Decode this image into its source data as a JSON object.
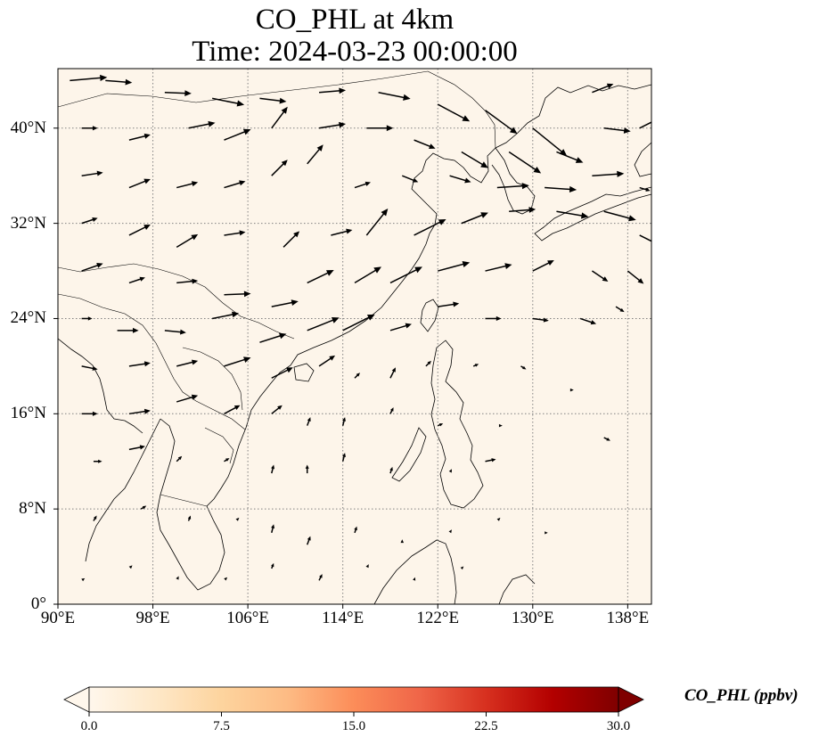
{
  "title": {
    "line1": "CO_PHL at 4km",
    "line2": "Time: 2024-03-23 00:00:00"
  },
  "map": {
    "extent": {
      "lon_min": 90,
      "lon_max": 140,
      "lat_min": 0,
      "lat_max": 45
    },
    "lat_ticks": [
      {
        "value": 40,
        "label": "40°N"
      },
      {
        "value": 32,
        "label": "32°N"
      },
      {
        "value": 24,
        "label": "24°N"
      },
      {
        "value": 16,
        "label": "16°N"
      },
      {
        "value": 8,
        "label": "8°N"
      },
      {
        "value": 0,
        "label": "0°"
      }
    ],
    "lon_ticks": [
      {
        "value": 90,
        "label": "90°E"
      },
      {
        "value": 98,
        "label": "98°E"
      },
      {
        "value": 106,
        "label": "106°E"
      },
      {
        "value": 114,
        "label": "114°E"
      },
      {
        "value": 122,
        "label": "122°E"
      },
      {
        "value": 130,
        "label": "130°E"
      },
      {
        "value": 138,
        "label": "138°E"
      }
    ],
    "gridlines": true,
    "field_color": "#fdf5ea",
    "coast_color": "#000000",
    "vector_color": "#000000",
    "wind_vectors": [
      {
        "lon": 91,
        "lat": 44,
        "u": 3.5,
        "v": 0.3
      },
      {
        "lon": 94,
        "lat": 44,
        "u": 2.5,
        "v": -0.2
      },
      {
        "lon": 99,
        "lat": 43,
        "u": 2.5,
        "v": -0.1
      },
      {
        "lon": 103,
        "lat": 42.5,
        "u": 3,
        "v": -0.6
      },
      {
        "lon": 107,
        "lat": 42.5,
        "u": 2.5,
        "v": -0.3
      },
      {
        "lon": 112,
        "lat": 43,
        "u": 2.5,
        "v": 0.2
      },
      {
        "lon": 117,
        "lat": 43,
        "u": 3,
        "v": -0.6
      },
      {
        "lon": 122,
        "lat": 42,
        "u": 3,
        "v": -1.6
      },
      {
        "lon": 126,
        "lat": 41.5,
        "u": 3,
        "v": -2.2
      },
      {
        "lon": 130,
        "lat": 40,
        "u": 3.2,
        "v": -2.6
      },
      {
        "lon": 135,
        "lat": 43,
        "u": 2,
        "v": 0.8
      },
      {
        "lon": 139,
        "lat": 40,
        "u": 2,
        "v": 1
      },
      {
        "lon": 92,
        "lat": 40,
        "u": 1.5,
        "v": 0
      },
      {
        "lon": 96,
        "lat": 39,
        "u": 2,
        "v": 0.5
      },
      {
        "lon": 101,
        "lat": 40,
        "u": 2.5,
        "v": 0.5
      },
      {
        "lon": 104,
        "lat": 39,
        "u": 2.5,
        "v": 1
      },
      {
        "lon": 108,
        "lat": 40,
        "u": 1.5,
        "v": 2
      },
      {
        "lon": 112,
        "lat": 40,
        "u": 2.5,
        "v": 0.4
      },
      {
        "lon": 116,
        "lat": 40,
        "u": 2.5,
        "v": 0
      },
      {
        "lon": 120,
        "lat": 39,
        "u": 2,
        "v": -0.8
      },
      {
        "lon": 124,
        "lat": 38,
        "u": 2.5,
        "v": -1.5
      },
      {
        "lon": 128,
        "lat": 38,
        "u": 3,
        "v": -2
      },
      {
        "lon": 132,
        "lat": 38,
        "u": 2.5,
        "v": -1
      },
      {
        "lon": 136,
        "lat": 40,
        "u": 2.5,
        "v": -0.3
      },
      {
        "lon": 92,
        "lat": 36,
        "u": 2,
        "v": 0.3
      },
      {
        "lon": 96,
        "lat": 35,
        "u": 2,
        "v": 0.8
      },
      {
        "lon": 100,
        "lat": 35,
        "u": 2,
        "v": 0.5
      },
      {
        "lon": 104,
        "lat": 35,
        "u": 2,
        "v": 0.6
      },
      {
        "lon": 108,
        "lat": 36,
        "u": 1.5,
        "v": 1.5
      },
      {
        "lon": 111,
        "lat": 37,
        "u": 1.5,
        "v": 1.8
      },
      {
        "lon": 115,
        "lat": 35,
        "u": 1.5,
        "v": 0.5
      },
      {
        "lon": 119,
        "lat": 36,
        "u": 1.5,
        "v": -0.6
      },
      {
        "lon": 123,
        "lat": 36,
        "u": 2,
        "v": -0.6
      },
      {
        "lon": 127,
        "lat": 35,
        "u": 3,
        "v": 0.2
      },
      {
        "lon": 131,
        "lat": 35,
        "u": 3,
        "v": -0.2
      },
      {
        "lon": 135,
        "lat": 36,
        "u": 3,
        "v": 0.2
      },
      {
        "lon": 139,
        "lat": 35,
        "u": 1,
        "v": -0.3
      },
      {
        "lon": 92,
        "lat": 32,
        "u": 1.5,
        "v": 0.5
      },
      {
        "lon": 96,
        "lat": 31,
        "u": 2,
        "v": 1
      },
      {
        "lon": 100,
        "lat": 30,
        "u": 2,
        "v": 1.2
      },
      {
        "lon": 104,
        "lat": 31,
        "u": 2,
        "v": 0.3
      },
      {
        "lon": 109,
        "lat": 30,
        "u": 1.5,
        "v": 1.5
      },
      {
        "lon": 113,
        "lat": 31,
        "u": 2,
        "v": 0.5
      },
      {
        "lon": 116,
        "lat": 31,
        "u": 2,
        "v": 2.5
      },
      {
        "lon": 120,
        "lat": 31,
        "u": 3,
        "v": 1.5
      },
      {
        "lon": 124,
        "lat": 32,
        "u": 2.5,
        "v": 1
      },
      {
        "lon": 128,
        "lat": 33,
        "u": 2.5,
        "v": 0.2
      },
      {
        "lon": 132,
        "lat": 33,
        "u": 3,
        "v": -0.5
      },
      {
        "lon": 136,
        "lat": 33,
        "u": 3,
        "v": -0.8
      },
      {
        "lon": 139,
        "lat": 31,
        "u": 2,
        "v": -1
      },
      {
        "lon": 92,
        "lat": 28,
        "u": 2,
        "v": 0.7
      },
      {
        "lon": 96,
        "lat": 27,
        "u": 1.5,
        "v": 0.5
      },
      {
        "lon": 100,
        "lat": 27,
        "u": 2,
        "v": 0.2
      },
      {
        "lon": 104,
        "lat": 26,
        "u": 2.5,
        "v": 0.1
      },
      {
        "lon": 108,
        "lat": 25,
        "u": 2.5,
        "v": 0.5
      },
      {
        "lon": 111,
        "lat": 27,
        "u": 2.5,
        "v": 1.2
      },
      {
        "lon": 115,
        "lat": 27,
        "u": 2.5,
        "v": 1.5
      },
      {
        "lon": 118,
        "lat": 27,
        "u": 3,
        "v": 1.5
      },
      {
        "lon": 122,
        "lat": 28,
        "u": 3,
        "v": 0.8
      },
      {
        "lon": 126,
        "lat": 28,
        "u": 2.5,
        "v": 0.6
      },
      {
        "lon": 130,
        "lat": 28,
        "u": 2,
        "v": 1
      },
      {
        "lon": 135,
        "lat": 28,
        "u": 1.5,
        "v": -1
      },
      {
        "lon": 138,
        "lat": 28,
        "u": 1.5,
        "v": -1.2
      },
      {
        "lon": 92,
        "lat": 24,
        "u": 1,
        "v": 0
      },
      {
        "lon": 95,
        "lat": 23,
        "u": 2,
        "v": 0
      },
      {
        "lon": 99,
        "lat": 23,
        "u": 2,
        "v": -0.2
      },
      {
        "lon": 103,
        "lat": 24,
        "u": 2.5,
        "v": 0.5
      },
      {
        "lon": 107,
        "lat": 22,
        "u": 2.5,
        "v": 0.8
      },
      {
        "lon": 111,
        "lat": 23,
        "u": 3,
        "v": 1.2
      },
      {
        "lon": 114,
        "lat": 23,
        "u": 3,
        "v": 1.5
      },
      {
        "lon": 118,
        "lat": 23,
        "u": 2,
        "v": 0.6
      },
      {
        "lon": 122,
        "lat": 25,
        "u": 2,
        "v": 0.3
      },
      {
        "lon": 126,
        "lat": 24,
        "u": 1.5,
        "v": 0
      },
      {
        "lon": 130,
        "lat": 24,
        "u": 1.5,
        "v": -0.2
      },
      {
        "lon": 134,
        "lat": 24,
        "u": 1.5,
        "v": -0.5
      },
      {
        "lon": 137,
        "lat": 25,
        "u": 0.8,
        "v": -0.5
      },
      {
        "lon": 92,
        "lat": 20,
        "u": 1.5,
        "v": -0.3
      },
      {
        "lon": 96,
        "lat": 20,
        "u": 2,
        "v": 0.3
      },
      {
        "lon": 100,
        "lat": 20,
        "u": 2,
        "v": 0.5
      },
      {
        "lon": 104,
        "lat": 20,
        "u": 2.5,
        "v": 0.8
      },
      {
        "lon": 108,
        "lat": 19,
        "u": 2,
        "v": 1
      },
      {
        "lon": 112,
        "lat": 20,
        "u": 1.5,
        "v": 1
      },
      {
        "lon": 115,
        "lat": 19,
        "u": 0.5,
        "v": 0.5
      },
      {
        "lon": 118,
        "lat": 19,
        "u": 0.5,
        "v": 1
      },
      {
        "lon": 121,
        "lat": 20,
        "u": 0.5,
        "v": 0.5
      },
      {
        "lon": 125,
        "lat": 20,
        "u": 0.5,
        "v": 0.2
      },
      {
        "lon": 129,
        "lat": 20,
        "u": 0.5,
        "v": -0.3
      },
      {
        "lon": 133,
        "lat": 18,
        "u": 0.5,
        "v": 0
      },
      {
        "lon": 92,
        "lat": 16,
        "u": 1.5,
        "v": 0
      },
      {
        "lon": 96,
        "lat": 16,
        "u": 2,
        "v": 0.3
      },
      {
        "lon": 100,
        "lat": 17,
        "u": 2,
        "v": 0.6
      },
      {
        "lon": 104,
        "lat": 16,
        "u": 1.5,
        "v": 0.8
      },
      {
        "lon": 108,
        "lat": 16,
        "u": 1,
        "v": 0.8
      },
      {
        "lon": 111,
        "lat": 15,
        "u": 0.3,
        "v": 0.8
      },
      {
        "lon": 114,
        "lat": 15,
        "u": 0.2,
        "v": 0.8
      },
      {
        "lon": 118,
        "lat": 16,
        "u": 0.3,
        "v": 0.6
      },
      {
        "lon": 122,
        "lat": 15,
        "u": 0.5,
        "v": 0.2
      },
      {
        "lon": 127,
        "lat": 15,
        "u": 0.5,
        "v": 0
      },
      {
        "lon": 136,
        "lat": 14,
        "u": 0.6,
        "v": -0.3
      },
      {
        "lon": 93,
        "lat": 12,
        "u": 0.8,
        "v": 0
      },
      {
        "lon": 96,
        "lat": 13,
        "u": 1.5,
        "v": 0.3
      },
      {
        "lon": 100,
        "lat": 12,
        "u": 0.5,
        "v": 0.5
      },
      {
        "lon": 104,
        "lat": 12,
        "u": 0.5,
        "v": 0.3
      },
      {
        "lon": 108,
        "lat": 11,
        "u": 0.2,
        "v": 0.8
      },
      {
        "lon": 111,
        "lat": 11,
        "u": 0,
        "v": 0.8
      },
      {
        "lon": 114,
        "lat": 12,
        "u": 0.2,
        "v": 0.8
      },
      {
        "lon": 118,
        "lat": 11,
        "u": 0.2,
        "v": 0.6
      },
      {
        "lon": 123,
        "lat": 11,
        "u": 0.2,
        "v": 0.4
      },
      {
        "lon": 126,
        "lat": 12,
        "u": 1,
        "v": 0.2
      },
      {
        "lon": 93,
        "lat": 7,
        "u": 0.3,
        "v": 0.5
      },
      {
        "lon": 97,
        "lat": 8,
        "u": 0.5,
        "v": 0.3
      },
      {
        "lon": 101,
        "lat": 7,
        "u": 0.2,
        "v": 0.5
      },
      {
        "lon": 105,
        "lat": 7,
        "u": 0.3,
        "v": 0.3
      },
      {
        "lon": 108,
        "lat": 6,
        "u": 0.2,
        "v": 0.8
      },
      {
        "lon": 111,
        "lat": 5,
        "u": 0.3,
        "v": 0.8
      },
      {
        "lon": 115,
        "lat": 6,
        "u": 0.2,
        "v": 0.6
      },
      {
        "lon": 119,
        "lat": 5,
        "u": 0,
        "v": 0.5
      },
      {
        "lon": 123,
        "lat": 6,
        "u": 0.2,
        "v": 0.3
      },
      {
        "lon": 127,
        "lat": 7,
        "u": 0.3,
        "v": 0.3
      },
      {
        "lon": 131,
        "lat": 6,
        "u": 0.3,
        "v": 0
      },
      {
        "lon": 92,
        "lat": 2,
        "u": 0.3,
        "v": 0.2
      },
      {
        "lon": 96,
        "lat": 3,
        "u": 0.3,
        "v": 0.3
      },
      {
        "lon": 100,
        "lat": 2,
        "u": 0.2,
        "v": 0.4
      },
      {
        "lon": 104,
        "lat": 2,
        "u": 0.3,
        "v": 0.3
      },
      {
        "lon": 108,
        "lat": 3,
        "u": 0.2,
        "v": 0.5
      },
      {
        "lon": 112,
        "lat": 2,
        "u": 0.3,
        "v": 0.6
      },
      {
        "lon": 116,
        "lat": 3,
        "u": 0.2,
        "v": 0.4
      },
      {
        "lon": 120,
        "lat": 2,
        "u": 0.1,
        "v": 0.3
      },
      {
        "lon": 124,
        "lat": 3,
        "u": 0.2,
        "v": 0.2
      }
    ]
  },
  "colorbar": {
    "label": "CO_PHL (ppbv)",
    "min": 0,
    "max": 30,
    "extend": "both",
    "ticks": [
      {
        "value": 0,
        "label": "0.0"
      },
      {
        "value": 7.5,
        "label": "7.5"
      },
      {
        "value": 15,
        "label": "15.0"
      },
      {
        "value": 22.5,
        "label": "22.5"
      },
      {
        "value": 30,
        "label": "30.0"
      }
    ],
    "colors": [
      "#fff7ec",
      "#fee8c8",
      "#fdd49e",
      "#fdbb84",
      "#fc8d59",
      "#ef6548",
      "#d7301f",
      "#b30000",
      "#7f0000"
    ]
  }
}
